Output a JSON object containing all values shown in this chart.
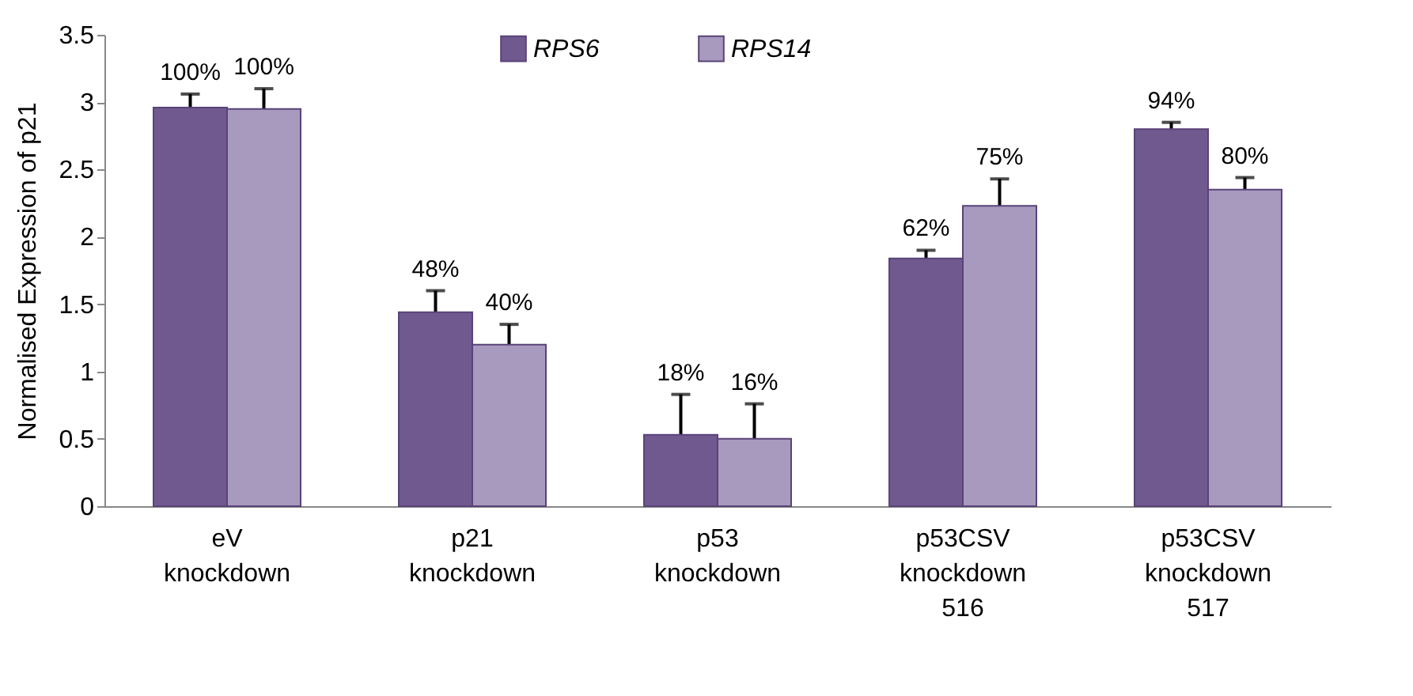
{
  "chart_data": {
    "type": "bar",
    "ylabel": "Normalised Expression of p21",
    "categories": [
      "eV knockdown",
      "p21 knockdown",
      "p53 knockdown",
      "p53CSV knockdown 516",
      "p53CSV knockdown 517"
    ],
    "series": [
      {
        "name": "RPS6",
        "color": "#70598f",
        "values": [
          2.96,
          1.44,
          0.53,
          1.84,
          2.8
        ],
        "errors": [
          0.1,
          0.16,
          0.3,
          0.06,
          0.05
        ]
      },
      {
        "name": "RPS14",
        "color": "#a899be",
        "values": [
          2.95,
          1.2,
          0.5,
          2.23,
          2.35
        ],
        "errors": [
          0.15,
          0.15,
          0.26,
          0.2,
          0.09
        ]
      }
    ],
    "annotations": [
      {
        "text": "100%",
        "x": "eV knockdown",
        "y": 2.96
      },
      {
        "text": "100%",
        "x": "eV knockdown",
        "y": 2.95
      },
      {
        "text": "48%",
        "x": "p21 knockdown",
        "y": 1.44
      },
      {
        "text": "40%",
        "x": "p21 knockdown",
        "y": 1.2
      },
      {
        "text": "18%",
        "x": "p53 knockdown",
        "y": 0.53
      },
      {
        "text": "16%",
        "x": "p53 knockdown",
        "y": 0.5
      },
      {
        "text": "62%",
        "x": "p53CSV knockdown 516",
        "y": 1.84
      },
      {
        "text": "75%",
        "x": "p53CSV knockdown 516",
        "y": 2.23
      },
      {
        "text": "94%",
        "x": "p53CSV knockdown 517",
        "y": 2.8
      },
      {
        "text": "80%",
        "x": "p53CSV knockdown 517",
        "y": 2.35
      }
    ],
    "ylim": [
      0,
      3.5
    ],
    "yticks": [
      0,
      0.5,
      1,
      1.5,
      2,
      2.5,
      3,
      3.5
    ],
    "grid": false,
    "legend": "top"
  }
}
